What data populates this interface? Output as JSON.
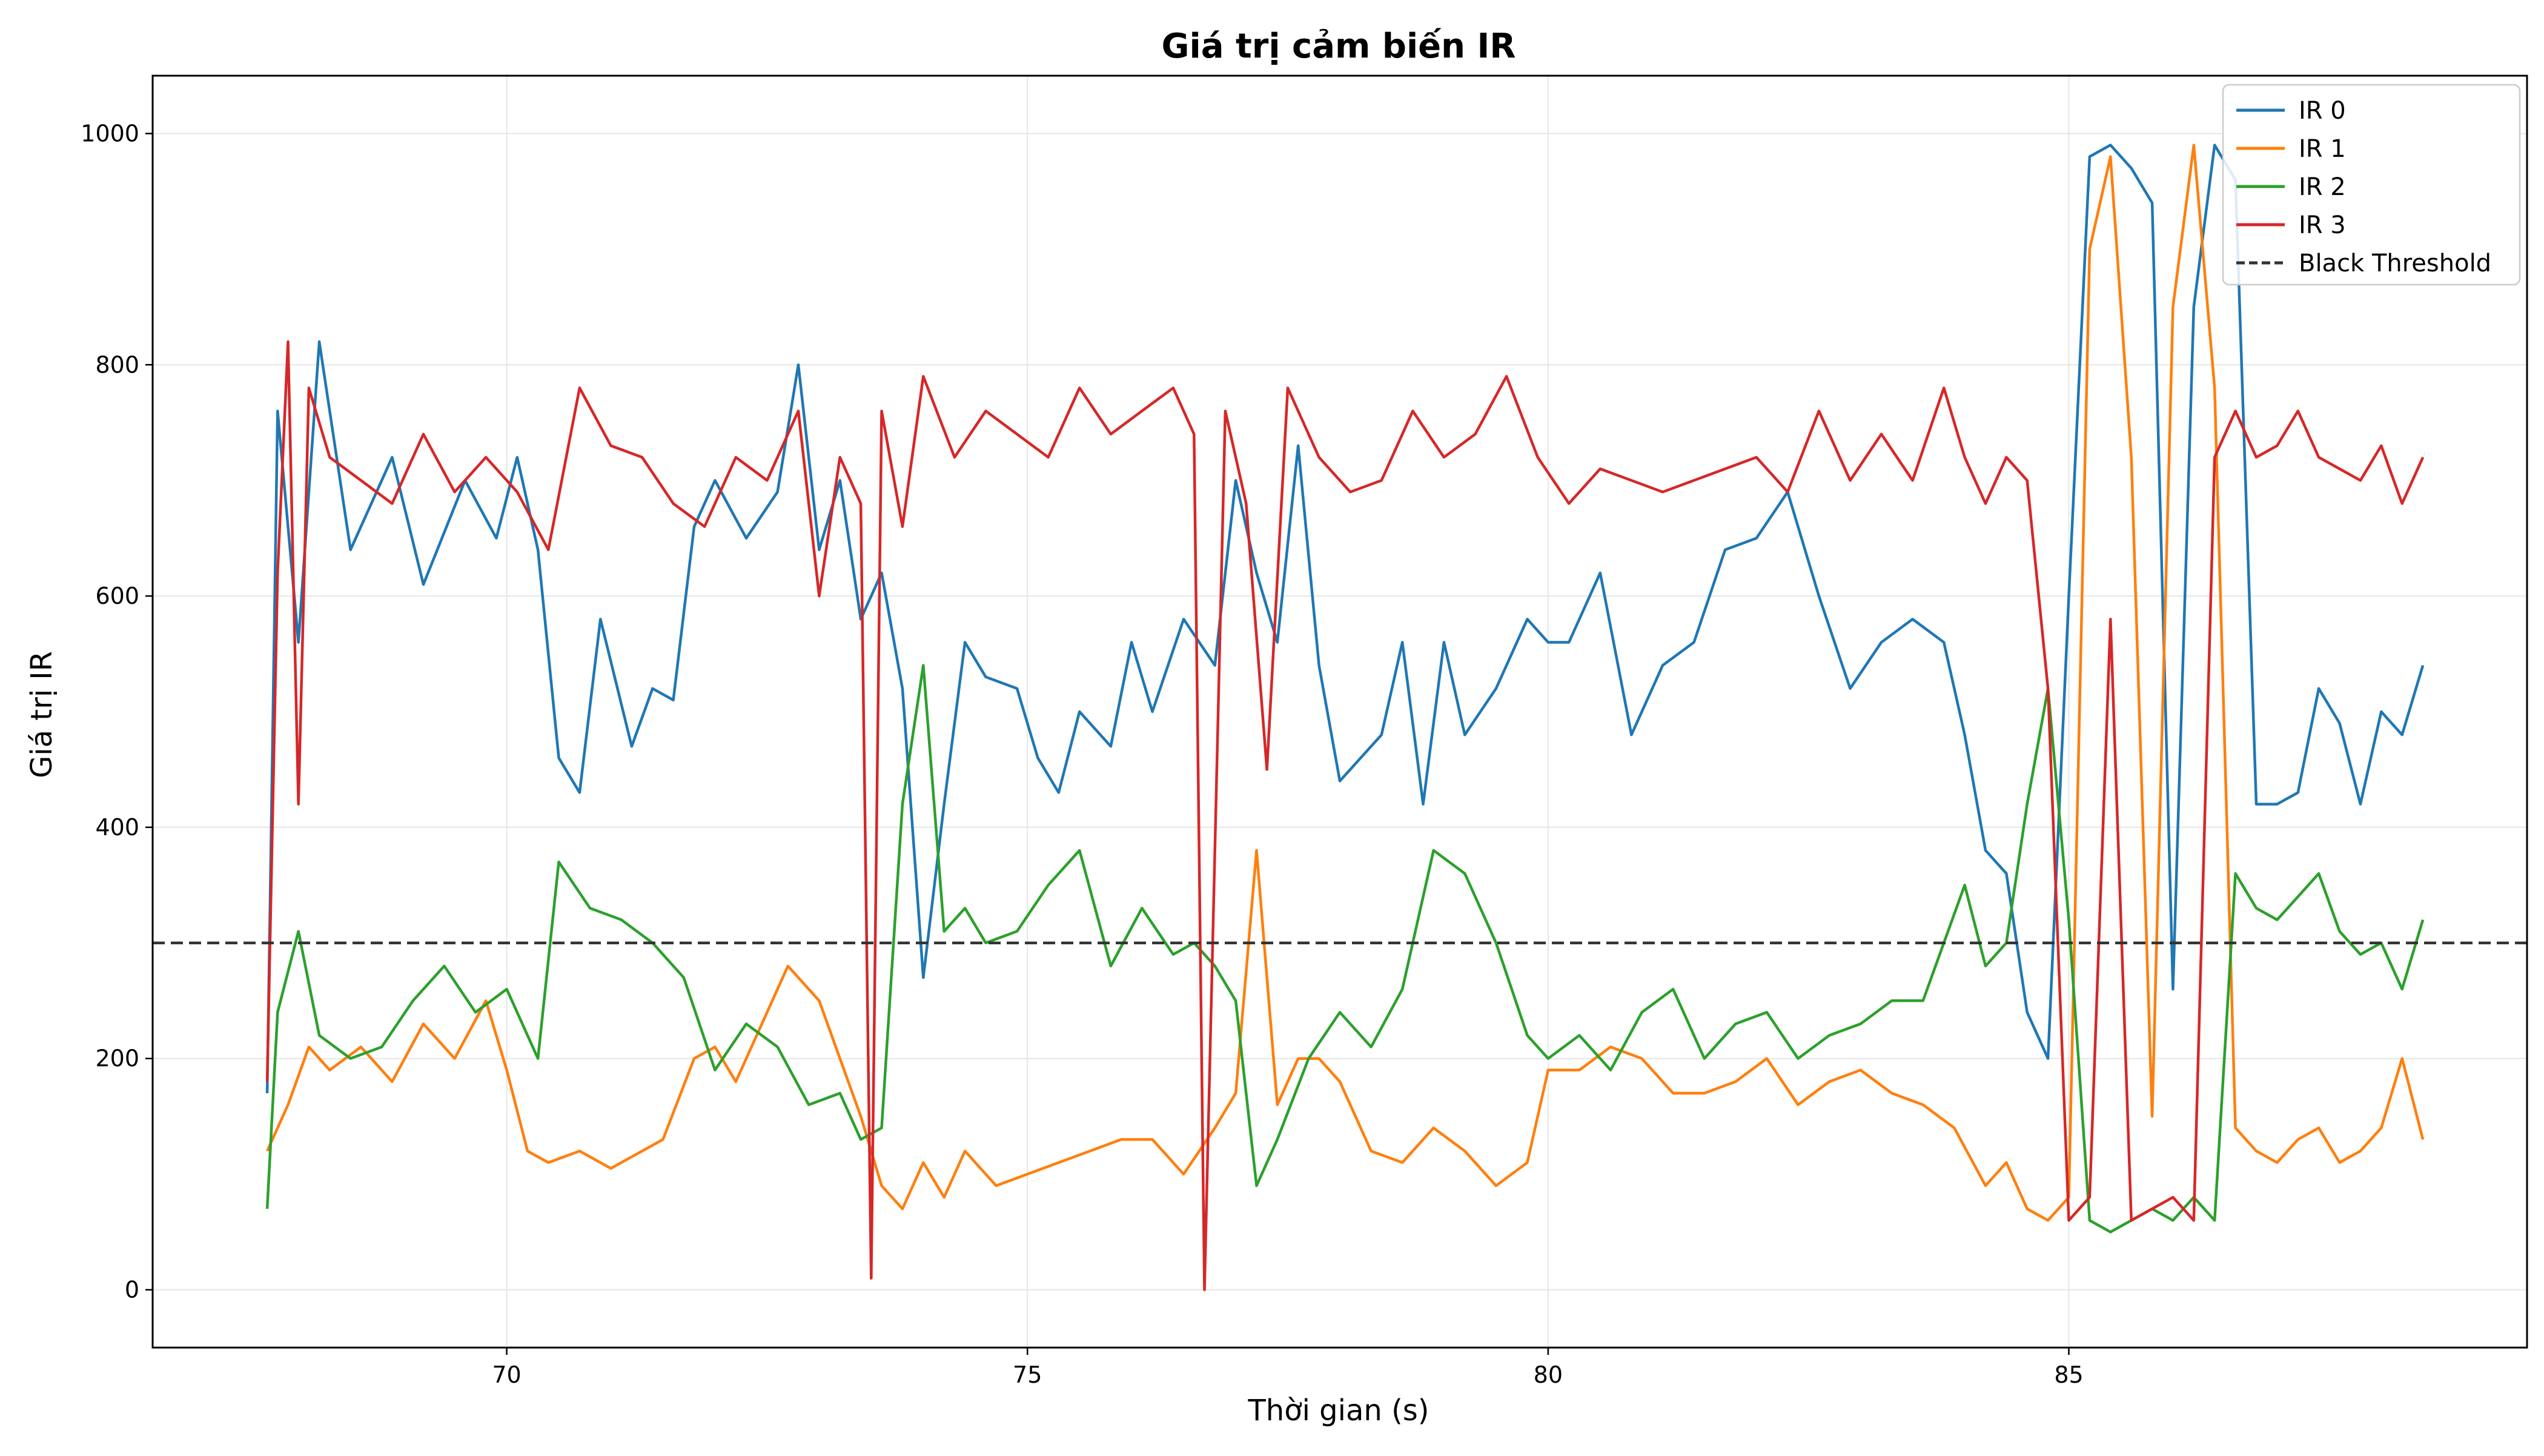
{
  "chart_data": {
    "type": "line",
    "title": "Giá trị cảm biến IR",
    "xlabel": "Thời gian (s)",
    "ylabel": "Giá trị IR",
    "xlim": [
      66.6,
      89.4
    ],
    "ylim": [
      -50,
      1050
    ],
    "x_ticks": [
      70,
      75,
      80,
      85
    ],
    "y_ticks": [
      0,
      200,
      400,
      600,
      800,
      1000
    ],
    "grid": true,
    "legend_position": "top-right",
    "threshold": {
      "name": "Black Threshold",
      "value": 300,
      "color": "#333333",
      "style": "dashed"
    },
    "series": [
      {
        "name": "IR 0",
        "color": "#1f77b4",
        "x": [
          67.7,
          67.8,
          68.0,
          68.2,
          68.5,
          68.9,
          69.2,
          69.6,
          69.9,
          70.1,
          70.3,
          70.5,
          70.7,
          70.9,
          71.2,
          71.4,
          71.6,
          71.8,
          72.0,
          72.3,
          72.6,
          72.8,
          73.0,
          73.2,
          73.4,
          73.6,
          73.8,
          74.0,
          74.2,
          74.4,
          74.6,
          74.9,
          75.1,
          75.3,
          75.5,
          75.8,
          76.0,
          76.2,
          76.5,
          76.8,
          77.0,
          77.2,
          77.4,
          77.6,
          77.8,
          78.0,
          78.2,
          78.4,
          78.6,
          78.8,
          79.0,
          79.2,
          79.5,
          79.8,
          80.0,
          80.2,
          80.5,
          80.8,
          81.1,
          81.4,
          81.7,
          82.0,
          82.3,
          82.6,
          82.9,
          83.2,
          83.5,
          83.8,
          84.0,
          84.2,
          84.4,
          84.6,
          84.8,
          85.0,
          85.2,
          85.4,
          85.6,
          85.8,
          86.0,
          86.2,
          86.4,
          86.6,
          86.8,
          87.0,
          87.2,
          87.4,
          87.6,
          87.8,
          88.0,
          88.2,
          88.4
        ],
        "values": [
          170,
          760,
          560,
          820,
          640,
          720,
          610,
          700,
          650,
          720,
          640,
          460,
          430,
          580,
          470,
          520,
          510,
          660,
          700,
          650,
          690,
          800,
          640,
          700,
          580,
          620,
          520,
          270,
          420,
          560,
          530,
          520,
          460,
          430,
          500,
          470,
          560,
          500,
          580,
          540,
          700,
          620,
          560,
          730,
          540,
          440,
          460,
          480,
          560,
          420,
          560,
          480,
          520,
          580,
          560,
          560,
          620,
          480,
          540,
          560,
          640,
          650,
          690,
          600,
          520,
          560,
          580,
          560,
          480,
          380,
          360,
          240,
          200,
          600,
          980,
          990,
          970,
          940,
          260,
          850,
          990,
          960,
          420,
          420,
          430,
          520,
          490,
          420,
          500,
          480,
          540
        ]
      },
      {
        "name": "IR 1",
        "color": "#ff7f0e",
        "x": [
          67.7,
          67.9,
          68.1,
          68.3,
          68.6,
          68.9,
          69.2,
          69.5,
          69.8,
          70.0,
          70.2,
          70.4,
          70.7,
          71.0,
          71.3,
          71.5,
          71.8,
          72.0,
          72.2,
          72.5,
          72.7,
          73.0,
          73.2,
          73.4,
          73.6,
          73.8,
          74.0,
          74.2,
          74.4,
          74.7,
          75.0,
          75.3,
          75.6,
          75.9,
          76.2,
          76.5,
          76.8,
          77.0,
          77.2,
          77.4,
          77.6,
          77.8,
          78.0,
          78.3,
          78.6,
          78.9,
          79.2,
          79.5,
          79.8,
          80.0,
          80.3,
          80.6,
          80.9,
          81.2,
          81.5,
          81.8,
          82.1,
          82.4,
          82.7,
          83.0,
          83.3,
          83.6,
          83.9,
          84.2,
          84.4,
          84.6,
          84.8,
          85.0,
          85.2,
          85.4,
          85.6,
          85.8,
          86.0,
          86.2,
          86.4,
          86.6,
          86.8,
          87.0,
          87.2,
          87.4,
          87.6,
          87.8,
          88.0,
          88.2,
          88.4
        ],
        "values": [
          120,
          160,
          210,
          190,
          210,
          180,
          230,
          200,
          250,
          190,
          120,
          110,
          120,
          105,
          120,
          130,
          200,
          210,
          180,
          240,
          280,
          250,
          200,
          150,
          90,
          70,
          110,
          80,
          120,
          90,
          100,
          110,
          120,
          130,
          130,
          100,
          140,
          170,
          380,
          160,
          200,
          200,
          180,
          120,
          110,
          140,
          120,
          90,
          110,
          190,
          190,
          210,
          200,
          170,
          170,
          180,
          200,
          160,
          180,
          190,
          170,
          160,
          140,
          90,
          110,
          70,
          60,
          80,
          900,
          980,
          720,
          150,
          850,
          990,
          780,
          140,
          120,
          110,
          130,
          140,
          110,
          120,
          140,
          200,
          130
        ]
      },
      {
        "name": "IR 2",
        "color": "#2ca02c",
        "x": [
          67.7,
          67.8,
          68.0,
          68.2,
          68.5,
          68.8,
          69.1,
          69.4,
          69.7,
          70.0,
          70.3,
          70.5,
          70.8,
          71.1,
          71.4,
          71.7,
          72.0,
          72.3,
          72.6,
          72.9,
          73.2,
          73.4,
          73.6,
          73.8,
          74.0,
          74.2,
          74.4,
          74.6,
          74.9,
          75.2,
          75.5,
          75.8,
          76.1,
          76.4,
          76.6,
          76.8,
          77.0,
          77.2,
          77.4,
          77.7,
          78.0,
          78.3,
          78.6,
          78.9,
          79.2,
          79.5,
          79.8,
          80.0,
          80.3,
          80.6,
          80.9,
          81.2,
          81.5,
          81.8,
          82.1,
          82.4,
          82.7,
          83.0,
          83.3,
          83.6,
          83.8,
          84.0,
          84.2,
          84.4,
          84.6,
          84.8,
          85.0,
          85.2,
          85.4,
          85.6,
          85.8,
          86.0,
          86.2,
          86.4,
          86.6,
          86.8,
          87.0,
          87.2,
          87.4,
          87.6,
          87.8,
          88.0,
          88.2,
          88.4
        ],
        "values": [
          70,
          240,
          310,
          220,
          200,
          210,
          250,
          280,
          240,
          260,
          200,
          370,
          330,
          320,
          300,
          270,
          190,
          230,
          210,
          160,
          170,
          130,
          140,
          420,
          540,
          310,
          330,
          300,
          310,
          350,
          380,
          280,
          330,
          290,
          300,
          280,
          250,
          90,
          130,
          200,
          240,
          210,
          260,
          380,
          360,
          300,
          220,
          200,
          220,
          190,
          240,
          260,
          200,
          230,
          240,
          200,
          220,
          230,
          250,
          250,
          300,
          350,
          280,
          300,
          420,
          520,
          320,
          60,
          50,
          60,
          70,
          60,
          80,
          60,
          360,
          330,
          320,
          340,
          360,
          310,
          290,
          300,
          260,
          320
        ]
      },
      {
        "name": "IR 3",
        "color": "#d62728",
        "x": [
          67.7,
          67.8,
          67.9,
          68.0,
          68.1,
          68.3,
          68.6,
          68.9,
          69.2,
          69.5,
          69.8,
          70.1,
          70.4,
          70.7,
          71.0,
          71.3,
          71.6,
          71.9,
          72.2,
          72.5,
          72.8,
          73.0,
          73.2,
          73.4,
          73.5,
          73.6,
          73.8,
          74.0,
          74.3,
          74.6,
          74.9,
          75.2,
          75.5,
          75.8,
          76.1,
          76.4,
          76.6,
          76.7,
          76.9,
          77.1,
          77.3,
          77.5,
          77.8,
          78.1,
          78.4,
          78.7,
          79.0,
          79.3,
          79.6,
          79.9,
          80.2,
          80.5,
          80.8,
          81.1,
          81.4,
          81.7,
          82.0,
          82.3,
          82.6,
          82.9,
          83.2,
          83.5,
          83.8,
          84.0,
          84.2,
          84.4,
          84.6,
          84.8,
          85.0,
          85.2,
          85.4,
          85.6,
          85.8,
          86.0,
          86.2,
          86.4,
          86.6,
          86.8,
          87.0,
          87.2,
          87.4,
          87.6,
          87.8,
          88.0,
          88.2,
          88.4
        ],
        "values": [
          180,
          620,
          820,
          420,
          780,
          720,
          700,
          680,
          740,
          690,
          720,
          690,
          640,
          780,
          730,
          720,
          680,
          660,
          720,
          700,
          760,
          600,
          720,
          680,
          10,
          760,
          660,
          790,
          720,
          760,
          740,
          720,
          780,
          740,
          760,
          780,
          740,
          0,
          760,
          680,
          450,
          780,
          720,
          690,
          700,
          760,
          720,
          740,
          790,
          720,
          680,
          710,
          700,
          690,
          700,
          710,
          720,
          690,
          760,
          700,
          740,
          700,
          780,
          720,
          680,
          720,
          700,
          520,
          60,
          80,
          580,
          60,
          70,
          80,
          60,
          720,
          760,
          720,
          730,
          760,
          720,
          710,
          700,
          730,
          680,
          720
        ]
      }
    ]
  }
}
